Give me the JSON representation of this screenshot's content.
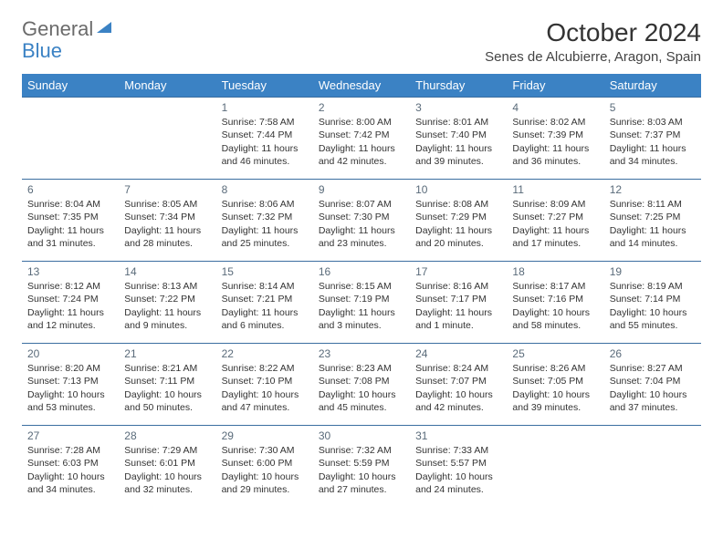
{
  "logo": {
    "line1": "General",
    "line2": "Blue"
  },
  "title": "October 2024",
  "location": "Senes de Alcubierre, Aragon, Spain",
  "weekdays": [
    "Sunday",
    "Monday",
    "Tuesday",
    "Wednesday",
    "Thursday",
    "Friday",
    "Saturday"
  ],
  "colors": {
    "header_bg": "#3b82c4",
    "header_text": "#ffffff",
    "border": "#3b6ea0",
    "daynum": "#5a6b7a",
    "body_text": "#333333",
    "logo_gray": "#6b6b6b",
    "logo_blue": "#3b82c4"
  },
  "weeks": [
    [
      null,
      null,
      {
        "n": "1",
        "sr": "7:58 AM",
        "ss": "7:44 PM",
        "dl": "11 hours and 46 minutes."
      },
      {
        "n": "2",
        "sr": "8:00 AM",
        "ss": "7:42 PM",
        "dl": "11 hours and 42 minutes."
      },
      {
        "n": "3",
        "sr": "8:01 AM",
        "ss": "7:40 PM",
        "dl": "11 hours and 39 minutes."
      },
      {
        "n": "4",
        "sr": "8:02 AM",
        "ss": "7:39 PM",
        "dl": "11 hours and 36 minutes."
      },
      {
        "n": "5",
        "sr": "8:03 AM",
        "ss": "7:37 PM",
        "dl": "11 hours and 34 minutes."
      }
    ],
    [
      {
        "n": "6",
        "sr": "8:04 AM",
        "ss": "7:35 PM",
        "dl": "11 hours and 31 minutes."
      },
      {
        "n": "7",
        "sr": "8:05 AM",
        "ss": "7:34 PM",
        "dl": "11 hours and 28 minutes."
      },
      {
        "n": "8",
        "sr": "8:06 AM",
        "ss": "7:32 PM",
        "dl": "11 hours and 25 minutes."
      },
      {
        "n": "9",
        "sr": "8:07 AM",
        "ss": "7:30 PM",
        "dl": "11 hours and 23 minutes."
      },
      {
        "n": "10",
        "sr": "8:08 AM",
        "ss": "7:29 PM",
        "dl": "11 hours and 20 minutes."
      },
      {
        "n": "11",
        "sr": "8:09 AM",
        "ss": "7:27 PM",
        "dl": "11 hours and 17 minutes."
      },
      {
        "n": "12",
        "sr": "8:11 AM",
        "ss": "7:25 PM",
        "dl": "11 hours and 14 minutes."
      }
    ],
    [
      {
        "n": "13",
        "sr": "8:12 AM",
        "ss": "7:24 PM",
        "dl": "11 hours and 12 minutes."
      },
      {
        "n": "14",
        "sr": "8:13 AM",
        "ss": "7:22 PM",
        "dl": "11 hours and 9 minutes."
      },
      {
        "n": "15",
        "sr": "8:14 AM",
        "ss": "7:21 PM",
        "dl": "11 hours and 6 minutes."
      },
      {
        "n": "16",
        "sr": "8:15 AM",
        "ss": "7:19 PM",
        "dl": "11 hours and 3 minutes."
      },
      {
        "n": "17",
        "sr": "8:16 AM",
        "ss": "7:17 PM",
        "dl": "11 hours and 1 minute."
      },
      {
        "n": "18",
        "sr": "8:17 AM",
        "ss": "7:16 PM",
        "dl": "10 hours and 58 minutes."
      },
      {
        "n": "19",
        "sr": "8:19 AM",
        "ss": "7:14 PM",
        "dl": "10 hours and 55 minutes."
      }
    ],
    [
      {
        "n": "20",
        "sr": "8:20 AM",
        "ss": "7:13 PM",
        "dl": "10 hours and 53 minutes."
      },
      {
        "n": "21",
        "sr": "8:21 AM",
        "ss": "7:11 PM",
        "dl": "10 hours and 50 minutes."
      },
      {
        "n": "22",
        "sr": "8:22 AM",
        "ss": "7:10 PM",
        "dl": "10 hours and 47 minutes."
      },
      {
        "n": "23",
        "sr": "8:23 AM",
        "ss": "7:08 PM",
        "dl": "10 hours and 45 minutes."
      },
      {
        "n": "24",
        "sr": "8:24 AM",
        "ss": "7:07 PM",
        "dl": "10 hours and 42 minutes."
      },
      {
        "n": "25",
        "sr": "8:26 AM",
        "ss": "7:05 PM",
        "dl": "10 hours and 39 minutes."
      },
      {
        "n": "26",
        "sr": "8:27 AM",
        "ss": "7:04 PM",
        "dl": "10 hours and 37 minutes."
      }
    ],
    [
      {
        "n": "27",
        "sr": "7:28 AM",
        "ss": "6:03 PM",
        "dl": "10 hours and 34 minutes."
      },
      {
        "n": "28",
        "sr": "7:29 AM",
        "ss": "6:01 PM",
        "dl": "10 hours and 32 minutes."
      },
      {
        "n": "29",
        "sr": "7:30 AM",
        "ss": "6:00 PM",
        "dl": "10 hours and 29 minutes."
      },
      {
        "n": "30",
        "sr": "7:32 AM",
        "ss": "5:59 PM",
        "dl": "10 hours and 27 minutes."
      },
      {
        "n": "31",
        "sr": "7:33 AM",
        "ss": "5:57 PM",
        "dl": "10 hours and 24 minutes."
      },
      null,
      null
    ]
  ],
  "labels": {
    "sunrise": "Sunrise: ",
    "sunset": "Sunset: ",
    "daylight": "Daylight: "
  }
}
